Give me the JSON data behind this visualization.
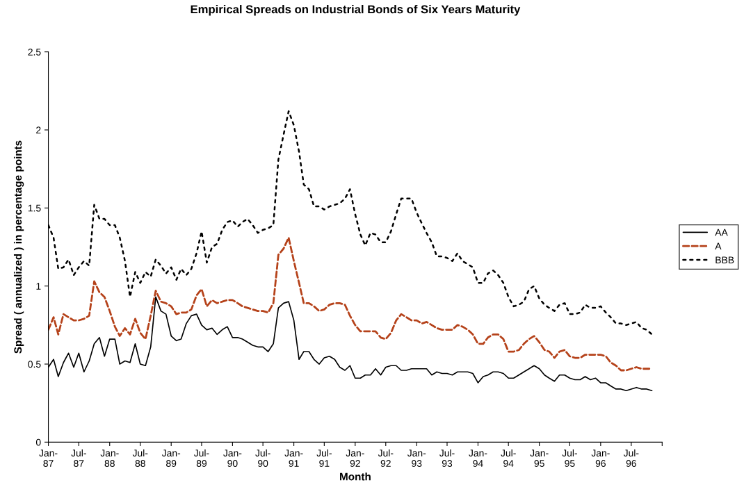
{
  "chart_data": {
    "type": "line",
    "title": "Empirical Spreads on Industrial Bonds of Six Years Maturity",
    "xlabel": "Month",
    "ylabel": "Spread ( annualized ) in percentage points",
    "x": [
      "1987-01",
      "1987-02",
      "1987-03",
      "1987-04",
      "1987-05",
      "1987-06",
      "1987-07",
      "1987-08",
      "1987-09",
      "1987-10",
      "1987-11",
      "1987-12",
      "1988-01",
      "1988-02",
      "1988-03",
      "1988-04",
      "1988-05",
      "1988-06",
      "1988-07",
      "1988-08",
      "1988-09",
      "1988-10",
      "1988-11",
      "1988-12",
      "1989-01",
      "1989-02",
      "1989-03",
      "1989-04",
      "1989-05",
      "1989-06",
      "1989-07",
      "1989-08",
      "1989-09",
      "1989-10",
      "1989-11",
      "1989-12",
      "1990-01",
      "1990-02",
      "1990-03",
      "1990-04",
      "1990-05",
      "1990-06",
      "1990-07",
      "1990-08",
      "1990-09",
      "1990-10",
      "1990-11",
      "1990-12",
      "1991-01",
      "1991-02",
      "1991-03",
      "1991-04",
      "1991-05",
      "1991-06",
      "1991-07",
      "1991-08",
      "1991-09",
      "1991-10",
      "1991-11",
      "1991-12",
      "1992-01",
      "1992-02",
      "1992-03",
      "1992-04",
      "1992-05",
      "1992-06",
      "1992-07",
      "1992-08",
      "1992-09",
      "1992-10",
      "1992-11",
      "1992-12",
      "1993-01",
      "1993-02",
      "1993-03",
      "1993-04",
      "1993-05",
      "1993-06",
      "1993-07",
      "1993-08",
      "1993-09",
      "1993-10",
      "1993-11",
      "1993-12",
      "1994-01",
      "1994-02",
      "1994-03",
      "1994-04",
      "1994-05",
      "1994-06",
      "1994-07",
      "1994-08",
      "1994-09",
      "1994-10",
      "1994-11",
      "1994-12",
      "1995-01",
      "1995-02",
      "1995-03",
      "1995-04",
      "1995-05",
      "1995-06",
      "1995-07",
      "1995-08",
      "1995-09",
      "1995-10",
      "1995-11",
      "1995-12",
      "1996-01",
      "1996-02",
      "1996-03",
      "1996-04",
      "1996-05",
      "1996-06",
      "1996-07",
      "1996-08",
      "1996-09",
      "1996-10",
      "1996-11"
    ],
    "series": [
      {
        "name": "AA",
        "color": "#000000",
        "line_style": "solid",
        "values": [
          0.48,
          0.53,
          0.42,
          0.51,
          0.57,
          0.48,
          0.57,
          0.45,
          0.52,
          0.63,
          0.67,
          0.55,
          0.66,
          0.66,
          0.5,
          0.52,
          0.51,
          0.63,
          0.5,
          0.49,
          0.61,
          0.93,
          0.84,
          0.82,
          0.68,
          0.65,
          0.66,
          0.76,
          0.81,
          0.82,
          0.75,
          0.72,
          0.73,
          0.69,
          0.72,
          0.74,
          0.67,
          0.67,
          0.66,
          0.64,
          0.62,
          0.61,
          0.61,
          0.58,
          0.63,
          0.86,
          0.89,
          0.9,
          0.78,
          0.53,
          0.58,
          0.58,
          0.53,
          0.5,
          0.54,
          0.55,
          0.53,
          0.48,
          0.46,
          0.49,
          0.41,
          0.41,
          0.43,
          0.43,
          0.47,
          0.43,
          0.48,
          0.49,
          0.49,
          0.46,
          0.46,
          0.47,
          0.47,
          0.47,
          0.47,
          0.43,
          0.45,
          0.44,
          0.44,
          0.43,
          0.45,
          0.45,
          0.45,
          0.44,
          0.38,
          0.42,
          0.43,
          0.45,
          0.45,
          0.44,
          0.41,
          0.41,
          0.43,
          0.45,
          0.47,
          0.49,
          0.47,
          0.43,
          0.41,
          0.39,
          0.43,
          0.43,
          0.41,
          0.4,
          0.4,
          0.42,
          0.4,
          0.41,
          0.38,
          0.38,
          0.36,
          0.34,
          0.34,
          0.33,
          0.34,
          0.35,
          0.34,
          0.34,
          0.33
        ]
      },
      {
        "name": "A",
        "color": "#b5421a",
        "line_style": "dashed",
        "values": [
          0.72,
          0.8,
          0.69,
          0.82,
          0.8,
          0.78,
          0.78,
          0.79,
          0.81,
          1.03,
          0.96,
          0.93,
          0.84,
          0.74,
          0.68,
          0.73,
          0.69,
          0.79,
          0.7,
          0.66,
          0.81,
          0.97,
          0.9,
          0.89,
          0.87,
          0.82,
          0.83,
          0.83,
          0.85,
          0.94,
          0.98,
          0.87,
          0.91,
          0.89,
          0.9,
          0.91,
          0.91,
          0.89,
          0.87,
          0.86,
          0.85,
          0.84,
          0.84,
          0.83,
          0.89,
          1.2,
          1.24,
          1.31,
          1.16,
          1.02,
          0.89,
          0.89,
          0.87,
          0.84,
          0.85,
          0.88,
          0.89,
          0.89,
          0.88,
          0.81,
          0.75,
          0.71,
          0.71,
          0.71,
          0.71,
          0.67,
          0.66,
          0.7,
          0.78,
          0.82,
          0.8,
          0.78,
          0.78,
          0.76,
          0.77,
          0.75,
          0.73,
          0.72,
          0.72,
          0.72,
          0.75,
          0.74,
          0.72,
          0.69,
          0.63,
          0.63,
          0.67,
          0.69,
          0.69,
          0.66,
          0.58,
          0.58,
          0.59,
          0.63,
          0.66,
          0.68,
          0.64,
          0.59,
          0.58,
          0.54,
          0.58,
          0.59,
          0.55,
          0.54,
          0.54,
          0.56,
          0.56,
          0.56,
          0.56,
          0.55,
          0.51,
          0.49,
          0.46,
          0.46,
          0.47,
          0.48,
          0.47,
          0.47,
          0.47
        ]
      },
      {
        "name": "BBB",
        "color": "#000000",
        "line_style": "dotted",
        "values": [
          1.39,
          1.31,
          1.11,
          1.12,
          1.17,
          1.07,
          1.12,
          1.16,
          1.13,
          1.52,
          1.43,
          1.43,
          1.39,
          1.39,
          1.31,
          1.16,
          0.93,
          1.09,
          1.02,
          1.09,
          1.06,
          1.17,
          1.13,
          1.08,
          1.12,
          1.04,
          1.11,
          1.07,
          1.11,
          1.21,
          1.35,
          1.15,
          1.25,
          1.27,
          1.36,
          1.41,
          1.42,
          1.38,
          1.41,
          1.43,
          1.39,
          1.34,
          1.36,
          1.37,
          1.39,
          1.81,
          1.97,
          2.12,
          2.03,
          1.86,
          1.65,
          1.62,
          1.51,
          1.51,
          1.49,
          1.51,
          1.52,
          1.53,
          1.56,
          1.62,
          1.46,
          1.33,
          1.26,
          1.34,
          1.33,
          1.28,
          1.28,
          1.35,
          1.46,
          1.56,
          1.56,
          1.56,
          1.47,
          1.4,
          1.34,
          1.28,
          1.19,
          1.19,
          1.18,
          1.16,
          1.21,
          1.16,
          1.14,
          1.12,
          1.02,
          1.02,
          1.08,
          1.1,
          1.07,
          1.02,
          0.93,
          0.87,
          0.88,
          0.9,
          0.98,
          1.0,
          0.92,
          0.88,
          0.86,
          0.84,
          0.88,
          0.89,
          0.82,
          0.82,
          0.83,
          0.88,
          0.86,
          0.86,
          0.87,
          0.83,
          0.8,
          0.76,
          0.76,
          0.75,
          0.76,
          0.77,
          0.73,
          0.72,
          0.69
        ]
      }
    ],
    "xlim": [
      "1987-01",
      "1997-01"
    ],
    "xticks": [
      {
        "value": "1987-01",
        "label": "Jan-\n87"
      },
      {
        "value": "1987-07",
        "label": "Jul-\n87"
      },
      {
        "value": "1988-01",
        "label": "Jan-\n88"
      },
      {
        "value": "1988-07",
        "label": "Jul-\n88"
      },
      {
        "value": "1989-01",
        "label": "Jan-\n89"
      },
      {
        "value": "1989-07",
        "label": "Jul-\n89"
      },
      {
        "value": "1990-01",
        "label": "Jan-\n90"
      },
      {
        "value": "1990-07",
        "label": "Jul-\n90"
      },
      {
        "value": "1991-01",
        "label": "Jan-\n91"
      },
      {
        "value": "1991-07",
        "label": "Jul-\n91"
      },
      {
        "value": "1992-01",
        "label": "Jan-\n92"
      },
      {
        "value": "1992-07",
        "label": "Jul-\n92"
      },
      {
        "value": "1993-01",
        "label": "Jan-\n93"
      },
      {
        "value": "1993-07",
        "label": "Jul-\n93"
      },
      {
        "value": "1994-01",
        "label": "Jan-\n94"
      },
      {
        "value": "1994-07",
        "label": "Jul-\n94"
      },
      {
        "value": "1995-01",
        "label": "Jan-\n95"
      },
      {
        "value": "1995-07",
        "label": "Jul-\n95"
      },
      {
        "value": "1996-01",
        "label": "Jan-\n96"
      },
      {
        "value": "1996-07",
        "label": "Jul-\n96"
      },
      {
        "value": "1997-01",
        "label": null
      }
    ],
    "ylim": [
      0,
      2.5
    ],
    "yticks": [
      0,
      0.5,
      1,
      1.5,
      2,
      2.5
    ],
    "grid": false,
    "legend": "right"
  }
}
